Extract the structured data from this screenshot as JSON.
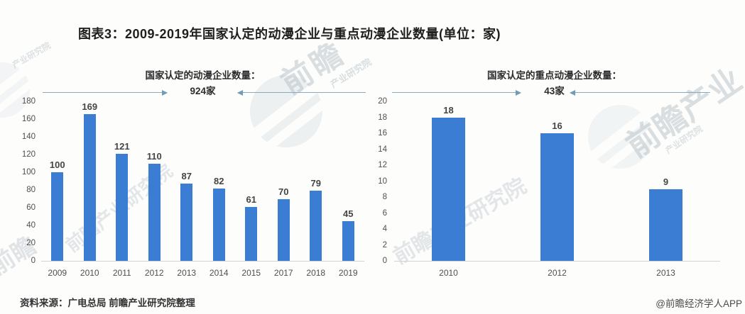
{
  "title": "图表3：2009-2019年国家认定的动漫企业与重点动漫企业数量(单位：家)",
  "footer": {
    "source_note": "资料来源：广电总局 前瞻产业研究院整理",
    "brand_credit": "@前瞻经济学人APP"
  },
  "colors": {
    "bar": "#3B7DD3",
    "arrow": "#6F9CB7",
    "axis_line": "#D2D2D2",
    "value_label": "#454545",
    "tick_label": "#4F4F4F"
  },
  "watermarks": {
    "brand_short": "前瞻",
    "brand_mid": "前瞻产业",
    "brand_full": "前瞻产业研究院",
    "brand_sub": "产业研究院"
  },
  "chart_data": [
    {
      "type": "bar",
      "title": "国家认定的动漫企业数量：",
      "total_label": "924家",
      "categories": [
        "2009",
        "2010",
        "2011",
        "2012",
        "2013",
        "2014",
        "2015",
        "2017",
        "2018",
        "2019"
      ],
      "values": [
        100,
        169,
        121,
        110,
        87,
        82,
        61,
        70,
        79,
        45
      ],
      "xlabel": "",
      "ylabel": "",
      "ylim": [
        0,
        180
      ],
      "ytick_step": 20,
      "grid": false,
      "legend": "none",
      "bar_color": "#3B7DD3"
    },
    {
      "type": "bar",
      "title": "国家认定的重点动漫企业数量：",
      "total_label": "43家",
      "categories": [
        "2010",
        "2012",
        "2013"
      ],
      "values": [
        18,
        16,
        9
      ],
      "xlabel": "",
      "ylabel": "",
      "ylim": [
        0,
        20
      ],
      "ytick_step": 2,
      "grid": false,
      "legend": "none",
      "bar_color": "#3B7DD3"
    }
  ]
}
